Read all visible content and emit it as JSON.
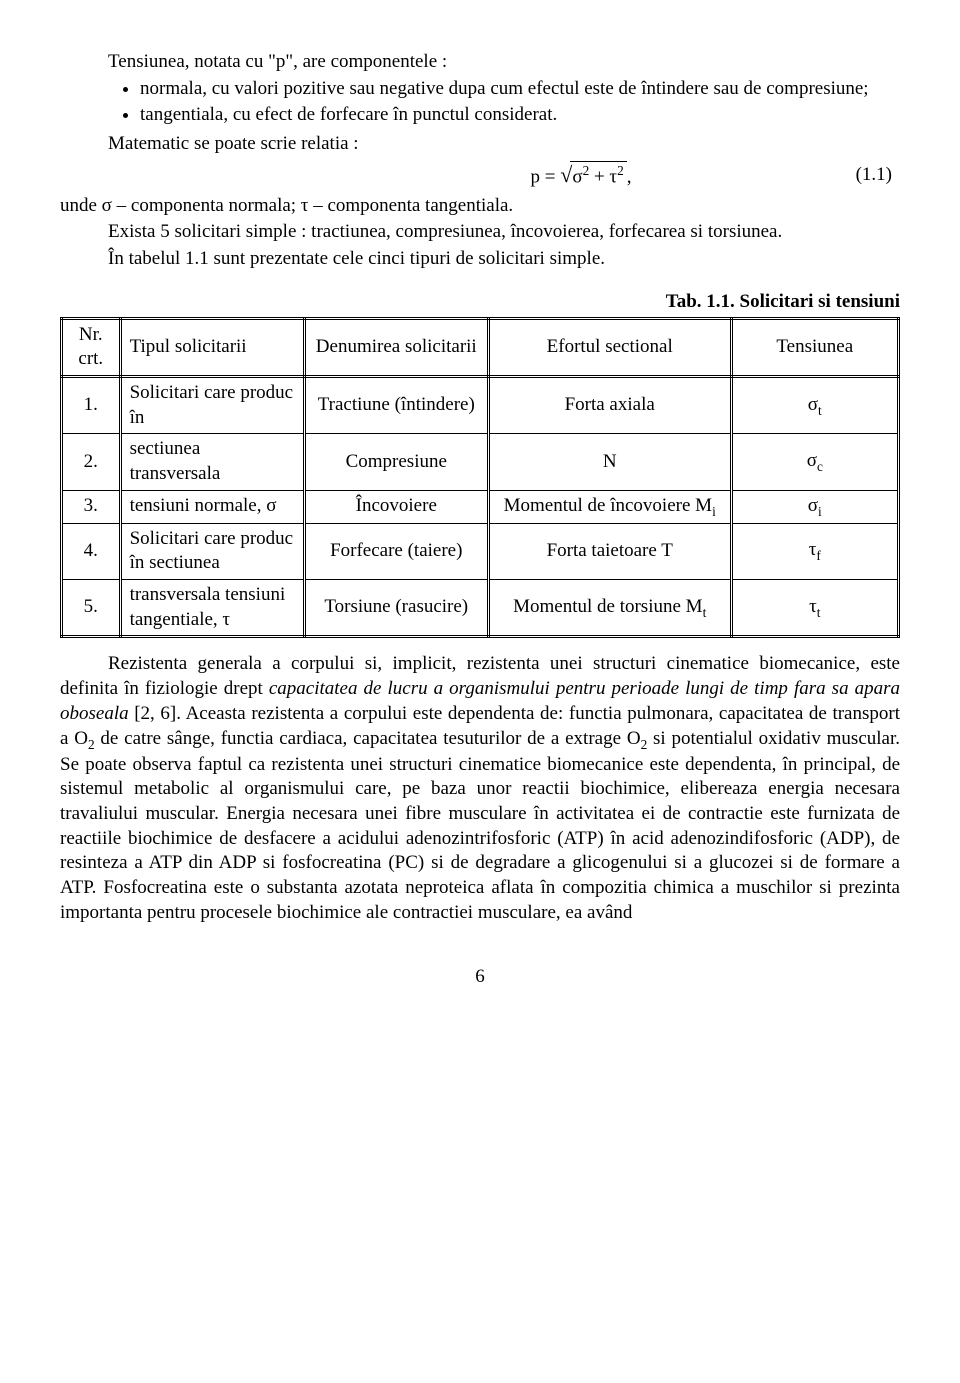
{
  "intro": {
    "line1": "Tensiunea, notata cu \"p\", are componentele :",
    "bullet1": "normala, cu valori pozitive sau negative dupa cum efectul este de întindere sau de compresiune;",
    "bullet2": "tangentiala, cu efect de forfecare în punctul considerat.",
    "line2": "Matematic se poate scrie relatia :"
  },
  "equation": {
    "prefix": "p =",
    "under_sqrt_html": "σ<sup>2</sup> + τ<sup>2</sup>",
    "suffix": ",",
    "num": "(1.1)"
  },
  "after_eq": {
    "unde": "unde σ – componenta normala; τ – componenta tangentiala.",
    "exista": "Exista 5 solicitari simple : tractiunea, compresiunea, încovoierea, forfecarea si torsiunea.",
    "tabel": "În tabelul 1.1 sunt prezentate cele cinci tipuri de solicitari simple."
  },
  "table": {
    "caption": "Tab. 1.1. Solicitari si tensiuni",
    "headers": {
      "nr": "Nr. crt.",
      "tip": "Tipul solicitarii",
      "den": "Denumirea solicitarii",
      "ef": "Efortul sectional",
      "ten": "Tensiunea"
    },
    "rows": [
      {
        "nr": "1.",
        "tip": "Solicitari care produc în",
        "den": "Tractiune (întindere)",
        "ef": "Forta axiala",
        "ten_html": "σ<sub>t</sub>"
      },
      {
        "nr": "2.",
        "tip": "sectiunea transversala",
        "den": "Compresiune",
        "ef": "N",
        "ten_html": "σ<sub>c</sub>"
      },
      {
        "nr": "3.",
        "tip": "tensiuni normale, σ",
        "den": "Încovoiere",
        "ef_html": "Momentul de încovoiere M<sub>i</sub>",
        "ten_html": "σ<sub>i</sub>"
      },
      {
        "nr": "4.",
        "tip": "Solicitari care produc în sectiunea",
        "den": "Forfecare (taiere)",
        "ef": "Forta taietoare T",
        "ten_html": "τ<sub>f</sub>"
      },
      {
        "nr": "5.",
        "tip": "transversala tensiuni tangentiale, τ",
        "den": "Torsiune (rasucire)",
        "ef_html": "Momentul de torsiune M<sub>t</sub>",
        "ten_html": "τ<sub>t</sub>"
      }
    ]
  },
  "para2_html": "Rezistenta generala a corpului si, implicit, rezistenta unei structuri cinematice biomecanice, este definita în fiziologie drept <span class=\"italic\">capacitatea de lucru a organismului pentru perioade lungi de timp fara sa apara oboseala</span> [2, 6]. Aceasta rezistenta a corpului este dependenta de: functia pulmonara, capacitatea de transport a O<sub>2</sub> de catre sânge, functia cardiaca, capacitatea tesuturilor de a extrage O<sub>2</sub> si potentialul oxidativ muscular. Se poate observa faptul ca rezistenta unei structuri cinematice biomecanice este dependenta, în principal, de sistemul metabolic al organismului care, pe baza unor reactii biochimice, elibereaza energia necesara travaliului muscular. Energia necesara unei fibre musculare în activitatea ei de contractie este furnizata de reactiile biochimice de desfacere a acidului adenozintrifosforic (ATP) în acid adenozindifosforic (ADP), de resinteza a ATP din ADP si fosfocreatina (PC) si de degradare a glicogenului si a glucozei si de formare a ATP. Fosfocreatina este o substanta azotata neproteica aflata în compozitia chimica a muschilor si prezinta importanta pentru procesele biochimice ale contractiei musculare, ea având",
  "pagenum": "6"
}
